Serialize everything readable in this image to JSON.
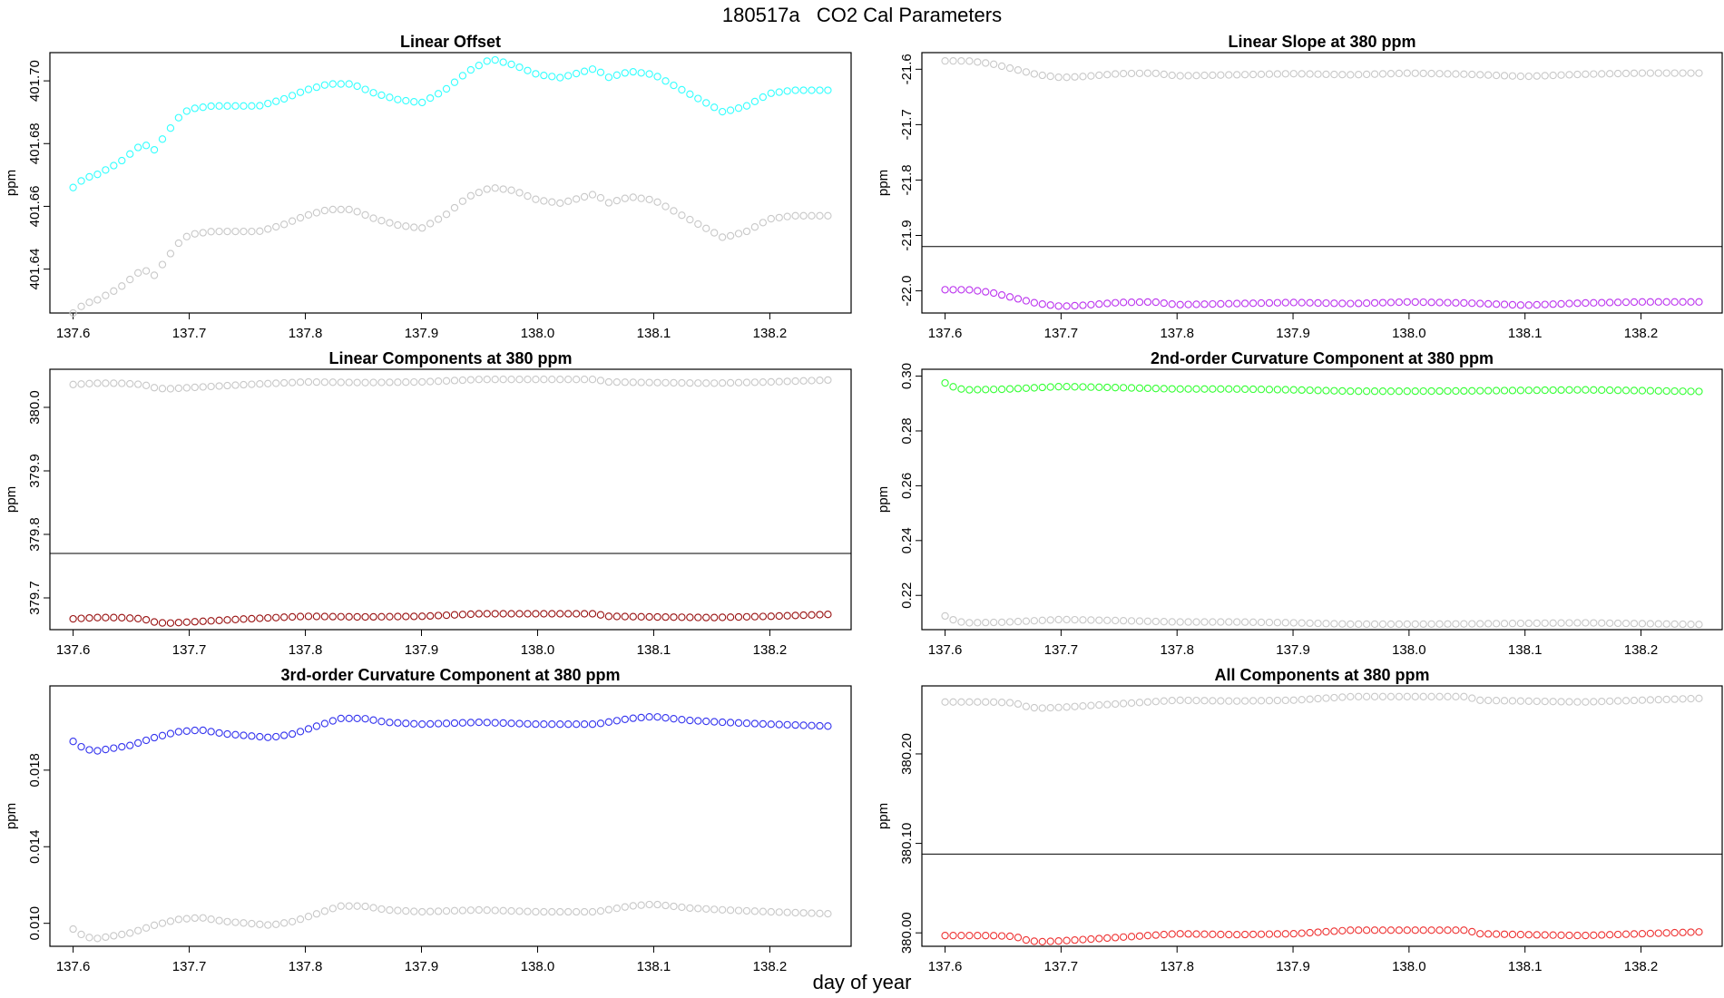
{
  "figure": {
    "title_id": "180517a",
    "title_text": "CO2 Cal Parameters",
    "xlabel": "day of year"
  },
  "colors": {
    "reference": "#c8c8c8",
    "frame": "#000000"
  },
  "chart_data": [
    {
      "type": "scatter",
      "title": "Linear Offset",
      "ylabel": "ppm",
      "xlim": [
        137.58,
        138.27
      ],
      "ylim": [
        401.626,
        401.709
      ],
      "xticks": [
        "137.6",
        "137.7",
        "137.8",
        "137.9",
        "138.0",
        "138.1",
        "138.2"
      ],
      "yticks": [
        "401.64",
        "401.66",
        "401.68",
        "401.70"
      ],
      "hline": null,
      "series": [
        {
          "color": "#33ffff",
          "x": [
            137.6,
            137.61,
            137.62,
            137.63,
            137.64,
            137.65,
            137.66,
            137.67,
            137.68,
            137.69,
            137.7,
            137.72,
            137.74,
            137.76,
            137.78,
            137.8,
            137.82,
            137.84,
            137.86,
            137.88,
            137.9,
            137.92,
            137.94,
            137.96,
            137.98,
            138.0,
            138.02,
            138.04,
            138.05,
            138.06,
            138.08,
            138.1,
            138.12,
            138.14,
            138.16,
            138.18,
            138.2,
            138.22,
            138.25
          ],
          "y": [
            401.666,
            401.669,
            401.67,
            401.672,
            401.674,
            401.677,
            401.68,
            401.678,
            401.683,
            401.688,
            401.691,
            401.692,
            401.692,
            401.692,
            401.694,
            401.697,
            401.699,
            401.699,
            401.696,
            401.694,
            401.693,
            401.697,
            401.703,
            401.707,
            401.705,
            401.702,
            401.701,
            401.703,
            401.704,
            401.701,
            401.703,
            401.702,
            401.698,
            401.694,
            401.69,
            401.692,
            401.696,
            401.697,
            401.697
          ]
        },
        {
          "color": "#c8c8c8",
          "x": [
            137.6,
            137.61,
            137.62,
            137.63,
            137.64,
            137.65,
            137.66,
            137.67,
            137.68,
            137.69,
            137.7,
            137.72,
            137.74,
            137.76,
            137.78,
            137.8,
            137.82,
            137.84,
            137.86,
            137.88,
            137.9,
            137.92,
            137.94,
            137.96,
            137.98,
            138.0,
            138.02,
            138.04,
            138.05,
            138.06,
            138.08,
            138.1,
            138.12,
            138.14,
            138.16,
            138.18,
            138.2,
            138.22,
            138.25
          ],
          "y": [
            401.626,
            401.629,
            401.63,
            401.632,
            401.634,
            401.637,
            401.64,
            401.638,
            401.643,
            401.648,
            401.651,
            401.652,
            401.652,
            401.652,
            401.654,
            401.657,
            401.659,
            401.659,
            401.656,
            401.654,
            401.653,
            401.657,
            401.663,
            401.666,
            401.665,
            401.662,
            401.661,
            401.663,
            401.664,
            401.661,
            401.663,
            401.662,
            401.658,
            401.654,
            401.65,
            401.652,
            401.656,
            401.657,
            401.657
          ]
        }
      ]
    },
    {
      "type": "scatter",
      "title": "Linear Slope at 380 ppm",
      "ylabel": "ppm",
      "xlim": [
        137.58,
        138.27
      ],
      "ylim": [
        -22.04,
        -21.57
      ],
      "xticks": [
        "137.6",
        "137.7",
        "137.8",
        "137.9",
        "138.0",
        "138.1",
        "138.2"
      ],
      "yticks": [
        "-22.0",
        "-21.9",
        "-21.8",
        "-21.7",
        "-21.6"
      ],
      "hline": -21.92,
      "series": [
        {
          "color": "#c8c8c8",
          "x": [
            137.6,
            137.62,
            137.64,
            137.66,
            137.68,
            137.7,
            137.72,
            137.75,
            137.78,
            137.8,
            137.85,
            137.9,
            137.95,
            138.0,
            138.05,
            138.1,
            138.15,
            138.2,
            138.25
          ],
          "y": [
            -21.585,
            -21.585,
            -21.59,
            -21.6,
            -21.61,
            -21.615,
            -21.613,
            -21.608,
            -21.607,
            -21.612,
            -21.61,
            -21.608,
            -21.61,
            -21.607,
            -21.609,
            -21.613,
            -21.609,
            -21.607,
            -21.607
          ]
        },
        {
          "color": "#bb33ee",
          "x": [
            137.6,
            137.62,
            137.64,
            137.66,
            137.68,
            137.7,
            137.72,
            137.75,
            137.78,
            137.8,
            137.85,
            137.9,
            137.95,
            138.0,
            138.05,
            138.1,
            138.15,
            138.2,
            138.25
          ],
          "y": [
            -21.998,
            -21.998,
            -22.003,
            -22.013,
            -22.023,
            -22.028,
            -22.026,
            -22.021,
            -22.02,
            -22.025,
            -22.023,
            -22.021,
            -22.023,
            -22.02,
            -22.022,
            -22.026,
            -22.022,
            -22.02,
            -22.02
          ]
        }
      ]
    },
    {
      "type": "scatter",
      "title": "Linear Components at 380 ppm",
      "ylabel": "ppm",
      "xlim": [
        137.58,
        138.27
      ],
      "ylim": [
        379.65,
        380.06
      ],
      "xticks": [
        "137.6",
        "137.7",
        "137.8",
        "137.9",
        "138.0",
        "138.1",
        "138.2"
      ],
      "yticks": [
        "379.7",
        "379.8",
        "379.9",
        "380.0"
      ],
      "hline": 379.77,
      "series": [
        {
          "color": "#c8c8c8",
          "x": [
            137.6,
            137.62,
            137.64,
            137.66,
            137.67,
            137.68,
            137.7,
            137.75,
            137.8,
            137.85,
            137.9,
            137.95,
            138.0,
            138.05,
            138.06,
            138.1,
            138.15,
            138.2,
            138.25
          ],
          "y": [
            380.036,
            380.038,
            380.038,
            380.036,
            380.031,
            380.029,
            380.031,
            380.036,
            380.04,
            380.039,
            380.04,
            380.044,
            380.044,
            380.044,
            380.04,
            380.039,
            380.038,
            380.04,
            380.043
          ]
        },
        {
          "color": "#991111",
          "x": [
            137.6,
            137.62,
            137.64,
            137.66,
            137.67,
            137.68,
            137.7,
            137.75,
            137.8,
            137.85,
            137.9,
            137.95,
            138.0,
            138.05,
            138.06,
            138.1,
            138.15,
            138.2,
            138.25
          ],
          "y": [
            379.667,
            379.669,
            379.669,
            379.667,
            379.662,
            379.66,
            379.662,
            379.667,
            379.671,
            379.67,
            379.671,
            379.675,
            379.675,
            379.675,
            379.671,
            379.67,
            379.669,
            379.671,
            379.674
          ]
        }
      ]
    },
    {
      "type": "scatter",
      "title": "2nd-order Curvature Component at 380 ppm",
      "ylabel": "ppm",
      "xlim": [
        137.58,
        138.27
      ],
      "ylim": [
        0.2075,
        0.3025
      ],
      "xticks": [
        "137.6",
        "137.7",
        "137.8",
        "137.9",
        "138.0",
        "138.1",
        "138.2"
      ],
      "yticks": [
        "0.22",
        "0.24",
        "0.26",
        "0.28",
        "0.30"
      ],
      "hline": null,
      "series": [
        {
          "color": "#33ff33",
          "x": [
            137.6,
            137.61,
            137.62,
            137.65,
            137.7,
            137.75,
            137.8,
            137.85,
            137.9,
            137.95,
            138.0,
            138.05,
            138.1,
            138.15,
            138.2,
            138.25
          ],
          "y": [
            0.2975,
            0.2955,
            0.295,
            0.2952,
            0.2962,
            0.2958,
            0.2953,
            0.2953,
            0.295,
            0.2945,
            0.2945,
            0.2946,
            0.2948,
            0.295,
            0.2947,
            0.2944
          ]
        },
        {
          "color": "#c8c8c8",
          "x": [
            137.6,
            137.61,
            137.62,
            137.65,
            137.7,
            137.75,
            137.8,
            137.85,
            137.9,
            137.95,
            138.0,
            138.05,
            138.1,
            138.15,
            138.2,
            138.25
          ],
          "y": [
            0.2125,
            0.2105,
            0.21,
            0.2102,
            0.2112,
            0.2108,
            0.2103,
            0.2103,
            0.21,
            0.2095,
            0.2095,
            0.2096,
            0.2098,
            0.21,
            0.2097,
            0.2094
          ]
        }
      ]
    },
    {
      "type": "scatter",
      "title": "3rd-order Curvature Component at 380 ppm",
      "ylabel": "ppm",
      "xlim": [
        137.58,
        138.27
      ],
      "ylim": [
        0.0088,
        0.0224
      ],
      "xticks": [
        "137.6",
        "137.7",
        "137.8",
        "137.9",
        "138.0",
        "138.1",
        "138.2"
      ],
      "yticks": [
        "0.010",
        "0.014",
        "0.018"
      ],
      "hline": null,
      "series": [
        {
          "color": "#3333ee",
          "x": [
            137.6,
            137.61,
            137.62,
            137.63,
            137.65,
            137.67,
            137.69,
            137.71,
            137.73,
            137.75,
            137.77,
            137.79,
            137.81,
            137.83,
            137.85,
            137.87,
            137.9,
            137.95,
            138.0,
            138.05,
            138.08,
            138.1,
            138.13,
            138.16,
            138.2,
            138.25
          ],
          "y": [
            0.0195,
            0.0191,
            0.019,
            0.0191,
            0.0193,
            0.0197,
            0.02,
            0.0201,
            0.0199,
            0.0198,
            0.0197,
            0.0199,
            0.0203,
            0.0207,
            0.0207,
            0.0205,
            0.0204,
            0.0205,
            0.0204,
            0.0204,
            0.0207,
            0.0208,
            0.0206,
            0.0205,
            0.0204,
            0.0203
          ]
        },
        {
          "color": "#c8c8c8",
          "x": [
            137.6,
            137.61,
            137.62,
            137.63,
            137.65,
            137.67,
            137.69,
            137.71,
            137.73,
            137.75,
            137.77,
            137.79,
            137.81,
            137.83,
            137.85,
            137.87,
            137.9,
            137.95,
            138.0,
            138.05,
            138.08,
            138.1,
            138.13,
            138.16,
            138.2,
            138.25
          ],
          "y": [
            0.0097,
            0.0093,
            0.0092,
            0.0093,
            0.0095,
            0.0099,
            0.0102,
            0.0103,
            0.0101,
            0.01,
            0.0099,
            0.0101,
            0.0105,
            0.0109,
            0.0109,
            0.0107,
            0.0106,
            0.0107,
            0.0106,
            0.0106,
            0.0109,
            0.011,
            0.0108,
            0.0107,
            0.0106,
            0.0105
          ]
        }
      ]
    },
    {
      "type": "scatter",
      "title": "All Components at 380 ppm",
      "ylabel": "ppm",
      "xlim": [
        137.58,
        138.27
      ],
      "ylim": [
        379.985,
        380.276
      ],
      "xticks": [
        "137.6",
        "137.7",
        "137.8",
        "137.9",
        "138.0",
        "138.1",
        "138.2"
      ],
      "yticks": [
        "380.00",
        "380.10",
        "380.20"
      ],
      "hline": 380.088,
      "series": [
        {
          "color": "#c8c8c8",
          "x": [
            137.6,
            137.62,
            137.64,
            137.66,
            137.67,
            137.68,
            137.7,
            137.75,
            137.8,
            137.85,
            137.9,
            137.95,
            138.0,
            138.05,
            138.06,
            138.1,
            138.15,
            138.2,
            138.25
          ],
          "y": [
            380.258,
            380.258,
            380.258,
            380.257,
            380.253,
            380.251,
            380.252,
            380.256,
            380.26,
            380.259,
            380.26,
            380.264,
            380.264,
            380.264,
            380.26,
            380.259,
            380.258,
            380.26,
            380.262
          ]
        },
        {
          "color": "#ee3333",
          "x": [
            137.6,
            137.62,
            137.64,
            137.66,
            137.67,
            137.68,
            137.7,
            137.75,
            137.8,
            137.85,
            137.9,
            137.95,
            138.0,
            138.05,
            138.06,
            138.1,
            138.15,
            138.2,
            138.25
          ],
          "y": [
            379.997,
            379.997,
            379.997,
            379.996,
            379.992,
            379.99,
            379.991,
            379.995,
            379.999,
            379.998,
            379.999,
            380.003,
            380.003,
            380.003,
            379.999,
            379.998,
            379.997,
            379.999,
            380.001
          ]
        }
      ]
    }
  ]
}
